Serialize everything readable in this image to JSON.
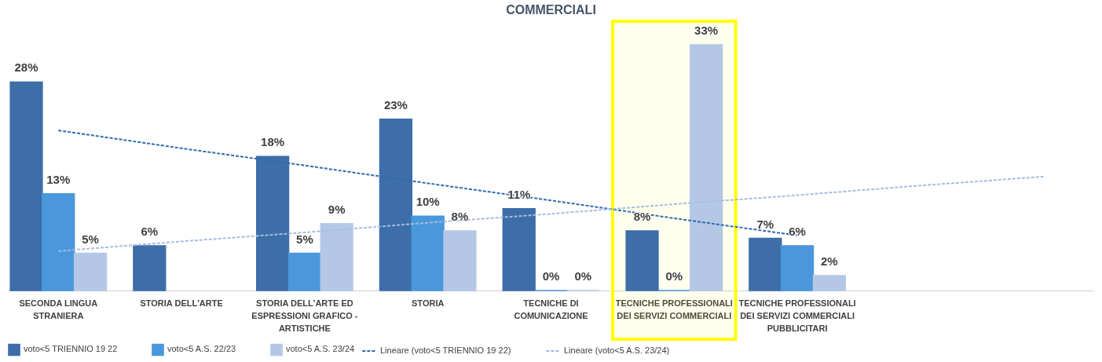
{
  "chart_data": {
    "type": "bar",
    "title": "COMMERCIALI",
    "categories": [
      "SECONDA LINGUA STRANIERA",
      "STORIA DELL'ARTE",
      "STORIA DELL'ARTE ED ESPRESSIONI GRAFICO - ARTISTICHE",
      "STORIA",
      "TECNICHE DI COMUNICAZIONE",
      "TECNICHE PROFESSIONALI DEI SERVIZI COMMERCIALI",
      "TECNICHE PROFESSIONALI DEI SERVIZI COMMERCIALI PUBBLICITARI",
      null,
      null
    ],
    "series": [
      {
        "name": "voto<5 TRIENNIO 19 22",
        "color": "#3d6ea8",
        "values": [
          28,
          6,
          18,
          23,
          11,
          8,
          7,
          null,
          null
        ],
        "value_labels": [
          "28%",
          "6%",
          "18%",
          "23%",
          "11%",
          "8%",
          "7%",
          null,
          null
        ]
      },
      {
        "name": "voto<5 A.S. 22/23",
        "color": "#4a97dc",
        "values": [
          13,
          null,
          5,
          10,
          0,
          0,
          6,
          null,
          null
        ],
        "value_labels": [
          "13%",
          null,
          "5%",
          "10%",
          "0%",
          "0%",
          "6%",
          null,
          null
        ]
      },
      {
        "name": "voto<5 A.S. 23/24",
        "color": "#b4c8e6",
        "values": [
          5,
          null,
          9,
          8,
          0,
          33,
          2,
          null,
          null
        ],
        "value_labels": [
          "5%",
          null,
          "9%",
          "8%",
          "0%",
          "33%",
          "2%",
          null,
          null
        ]
      },
      {
        "name": "Lineare (voto<5 TRIENNIO 19 22)",
        "type": "line",
        "line_style": "dashed",
        "color": "#2e6bb0",
        "values": [
          21.5,
          19.1,
          16.8,
          14.4,
          12.1,
          9.7,
          7.4,
          null,
          null
        ]
      },
      {
        "name": "Lineare (voto<5 A.S. 23/24)",
        "type": "line",
        "line_style": "dashed",
        "color": "#a6bde0",
        "values": [
          5.3,
          6.6,
          7.8,
          9.1,
          10.3,
          11.6,
          12.8,
          14.1,
          15.3
        ]
      }
    ],
    "bands": [
      {
        "axis": "x",
        "from": "TECNICHE PROFESSIONALI DEI SERVIZI COMMERCIALI",
        "to": "TECNICHE PROFESSIONALI DEI SERVIZI COMMERCIALI",
        "color": "#ffff00"
      }
    ],
    "legend": "bottom"
  }
}
